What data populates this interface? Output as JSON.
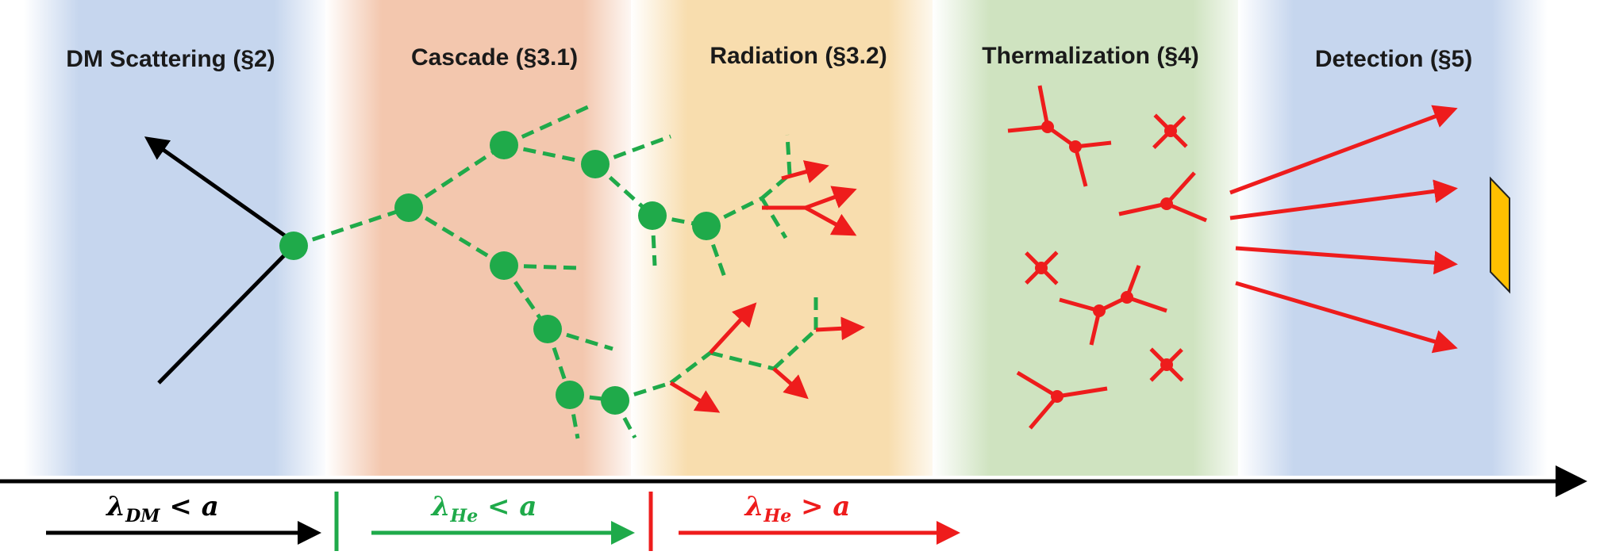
{
  "colors": {
    "blue_band": "#bccfeb",
    "orange_band": "#f3c7ae",
    "yellow_band": "#f8ddae",
    "green_band": "#cde2bc",
    "green": "#1faa4a",
    "red": "#ee1c1c",
    "black": "#000000",
    "detector": "#ffc000"
  },
  "stages": [
    {
      "title": "DM Scattering (§2)"
    },
    {
      "title": "Cascade (§3.1)"
    },
    {
      "title": "Radiation (§3.2)"
    },
    {
      "title": "Thermalization (§4)"
    },
    {
      "title": "Detection (§5)"
    }
  ],
  "regimes": [
    {
      "symbol": "λ",
      "sub": "DM",
      "relation": " < ",
      "rhs": "a",
      "color": "#000000"
    },
    {
      "symbol": "λ",
      "sub": "He",
      "relation": " < ",
      "rhs": "a",
      "color": "#1faa4a"
    },
    {
      "symbol": "λ",
      "sub": "He",
      "relation": " > ",
      "rhs": "a",
      "color": "#ee1c1c"
    }
  ],
  "icons": [
    "timeline-arrow-icon",
    "detector-icon"
  ]
}
